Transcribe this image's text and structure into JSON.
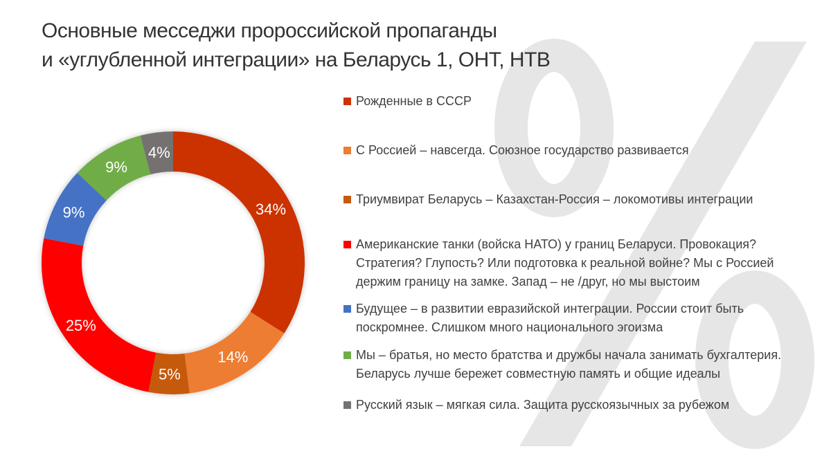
{
  "background_glyph": "%",
  "title": [
    "Основные месседжи пророссийской пропаганды",
    "и «углубленной интеграции» на Беларусь 1, ОНТ, НТВ"
  ],
  "chart_data": {
    "type": "pie",
    "variant": "donut",
    "title": "Основные месседжи пророссийской пропаганды и «углубленной интеграции» на Беларусь 1, ОНТ, НТВ",
    "unit": "%",
    "legend_position": "right",
    "slices": [
      {
        "label": "Рожденные в СССР",
        "lines": [
          "Рожденные в СССР"
        ],
        "value": 34,
        "data_label": "34%",
        "color": "#CC3300"
      },
      {
        "label": "С Россией – навсегда. Союзное государство развивается",
        "lines": [
          "С Россией – навсегда. Союзное государство развивается"
        ],
        "value": 14,
        "data_label": "14%",
        "color": "#ED7D31"
      },
      {
        "label": "Триумвират Беларусь – Казахстан-Россия – локомотивы интеграции",
        "lines": [
          "Триумвират Беларусь – Казахстан-Россия – локомотивы интеграции"
        ],
        "value": 5,
        "data_label": "5%",
        "color": "#C55A11"
      },
      {
        "label": "Американские танки (войска НАТО) у границ Беларуси. Провокация? Стратегия? Глупость? Или подготовка к реальной войне? Мы с Россией держим границу на замке. Запад – не /друг, но мы выстоим",
        "lines": [
          "Американские танки (войска НАТО) у границ Беларуси. Провокация?",
          "Стратегия? Глупость? Или подготовка к реальной войне? Мы с Россией",
          "держим границу на замке. Запад – не /друг, но мы выстоим"
        ],
        "value": 25,
        "data_label": "25%",
        "color": "#FF0000"
      },
      {
        "label": "Будущее – в развитии евразийской интеграции. России стоит быть поскромнее. Слишком много национального эгоизма",
        "lines": [
          "Будущее – в развитии евразийской интеграции. России стоит быть",
          "поскромнее. Слишком много национального эгоизма"
        ],
        "value": 9,
        "data_label": "9%",
        "color": "#4472C4"
      },
      {
        "label": "Мы – братья, но место братства и дружбы начала занимать бухгалтерия. Беларусь лучше бережет совместную память и общие идеалы",
        "lines": [
          "Мы – братья, но место братства и дружбы начала занимать бухгалтерия.",
          "Беларусь лучше бережет совместную память и общие идеалы"
        ],
        "value": 9,
        "data_label": "9%",
        "color": "#70AD47"
      },
      {
        "label": "Русский язык – мягкая сила. Защита русскоязычных за рубежом",
        "lines": [
          "Русский язык – мягкая сила. Защита русскоязычных за рубежом"
        ],
        "value": 4,
        "data_label": "4%",
        "color": "#767171"
      }
    ]
  }
}
